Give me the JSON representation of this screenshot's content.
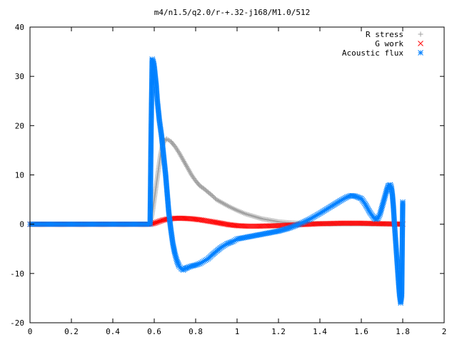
{
  "chart_data": {
    "type": "scatter",
    "title": "m4/n1.5/q2.0/r-+.32-j168/M1.0/512",
    "xlim": [
      0,
      2
    ],
    "ylim": [
      -20,
      40
    ],
    "x_ticks": [
      0,
      0.2,
      0.4,
      0.6,
      0.8,
      1,
      1.2,
      1.4,
      1.6,
      1.8,
      2
    ],
    "x_tick_labels": [
      "0",
      "0.2",
      "0.4",
      "0.6",
      "0.8",
      "1",
      "1.2",
      "1.4",
      "1.6",
      "1.8",
      "2"
    ],
    "y_ticks": [
      -20,
      -10,
      0,
      10,
      20,
      30,
      40
    ],
    "y_tick_labels": [
      "-20",
      "-10",
      "0",
      "10",
      "20",
      "30",
      "40"
    ],
    "grid": false,
    "legend_position": "top-right",
    "series": [
      {
        "name": "R stress",
        "color": "#a0a0a0",
        "marker": "plus",
        "x": [
          0,
          0.1,
          0.2,
          0.3,
          0.4,
          0.5,
          0.58,
          0.59,
          0.6,
          0.61,
          0.62,
          0.63,
          0.64,
          0.65,
          0.66,
          0.68,
          0.7,
          0.72,
          0.74,
          0.76,
          0.78,
          0.8,
          0.82,
          0.84,
          0.86,
          0.88,
          0.9,
          0.93,
          0.96,
          1.0,
          1.04,
          1.08,
          1.12,
          1.16,
          1.2,
          1.25,
          1.3,
          1.35,
          1.4,
          1.45,
          1.5,
          1.55,
          1.6,
          1.65,
          1.7,
          1.75,
          1.8
        ],
        "y": [
          0,
          0,
          0,
          0,
          0,
          0,
          0,
          2,
          5,
          8,
          11,
          14,
          16,
          17,
          17.3,
          16.8,
          15.8,
          14.5,
          13,
          11.5,
          10,
          8.8,
          7.8,
          7.2,
          6.5,
          5.8,
          5,
          4.3,
          3.6,
          2.8,
          2.1,
          1.6,
          1.1,
          0.8,
          0.5,
          0.3,
          0.2,
          0.1,
          0.1,
          0.05,
          0.05,
          0.05,
          0.05,
          0.05,
          0.05,
          0.05,
          0.05
        ]
      },
      {
        "name": "G work",
        "color": "#ff0000",
        "marker": "cross",
        "x": [
          0,
          0.1,
          0.2,
          0.3,
          0.4,
          0.5,
          0.58,
          0.6,
          0.62,
          0.64,
          0.66,
          0.68,
          0.7,
          0.72,
          0.74,
          0.76,
          0.78,
          0.8,
          0.82,
          0.85,
          0.88,
          0.92,
          0.96,
          1.0,
          1.05,
          1.1,
          1.15,
          1.2,
          1.25,
          1.3,
          1.35,
          1.4,
          1.45,
          1.5,
          1.55,
          1.6,
          1.65,
          1.7,
          1.75,
          1.8
        ],
        "y": [
          0,
          0,
          0,
          0,
          0,
          0,
          0,
          0.2,
          0.5,
          0.8,
          1,
          1.1,
          1.2,
          1.2,
          1.2,
          1.15,
          1.1,
          1,
          0.9,
          0.7,
          0.5,
          0.2,
          -0.1,
          -0.3,
          -0.4,
          -0.4,
          -0.35,
          -0.3,
          -0.2,
          -0.1,
          0,
          0.1,
          0.15,
          0.2,
          0.2,
          0.2,
          0.15,
          0.1,
          0.05,
          0
        ]
      },
      {
        "name": "Acoustic flux",
        "color": "#0080ff",
        "marker": "star",
        "x": [
          0,
          0.05,
          0.1,
          0.15,
          0.2,
          0.25,
          0.3,
          0.35,
          0.4,
          0.45,
          0.5,
          0.55,
          0.58,
          0.585,
          0.59,
          0.595,
          0.6,
          0.605,
          0.61,
          0.615,
          0.62,
          0.625,
          0.63,
          0.635,
          0.64,
          0.645,
          0.65,
          0.655,
          0.66,
          0.665,
          0.67,
          0.68,
          0.69,
          0.7,
          0.71,
          0.72,
          0.73,
          0.74,
          0.75,
          0.76,
          0.78,
          0.8,
          0.82,
          0.84,
          0.86,
          0.88,
          0.9,
          0.92,
          0.95,
          0.98,
          1.0,
          1.05,
          1.1,
          1.15,
          1.2,
          1.25,
          1.3,
          1.35,
          1.4,
          1.45,
          1.5,
          1.53,
          1.55,
          1.57,
          1.6,
          1.62,
          1.64,
          1.66,
          1.67,
          1.68,
          1.69,
          1.7,
          1.71,
          1.72,
          1.73,
          1.74,
          1.745,
          1.75,
          1.755,
          1.76,
          1.765,
          1.77,
          1.775,
          1.78,
          1.785,
          1.79,
          1.795,
          1.8
        ],
        "y": [
          0,
          0,
          0,
          0,
          0,
          0,
          0,
          0,
          0,
          0,
          0,
          0,
          0,
          19.5,
          33.5,
          33,
          32,
          30,
          28,
          25,
          23,
          21,
          19.5,
          18,
          16,
          14,
          12,
          10,
          7.5,
          5,
          2.5,
          -1,
          -4,
          -6,
          -7.5,
          -8.5,
          -9,
          -9.3,
          -9,
          -8.8,
          -8.5,
          -8.3,
          -8,
          -7.5,
          -7,
          -6.2,
          -5.5,
          -4.8,
          -4,
          -3.5,
          -3,
          -2.6,
          -2.2,
          -1.8,
          -1.4,
          -0.8,
          0,
          1,
          2.2,
          3.5,
          4.8,
          5.5,
          5.8,
          5.7,
          5.2,
          4,
          2.5,
          1.3,
          1,
          1.2,
          2,
          3.5,
          5,
          6.5,
          7.8,
          8,
          7.5,
          6,
          3.5,
          0,
          -3,
          -6,
          -9,
          -12,
          -14.5,
          -16,
          -14.5,
          4.5
        ]
      }
    ]
  }
}
